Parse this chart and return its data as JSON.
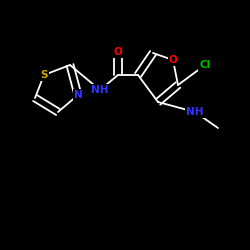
{
  "background_color": "#000000",
  "bond_color": "#ffffff",
  "atom_colors": {
    "O": "#ff0000",
    "N": "#3333ff",
    "S": "#ccaa00",
    "Cl": "#00bb00",
    "C": "#ffffff",
    "H": "#ffffff"
  },
  "figsize": [
    2.5,
    2.5
  ],
  "dpi": 100,
  "lw": 1.3,
  "fs": 7.5
}
